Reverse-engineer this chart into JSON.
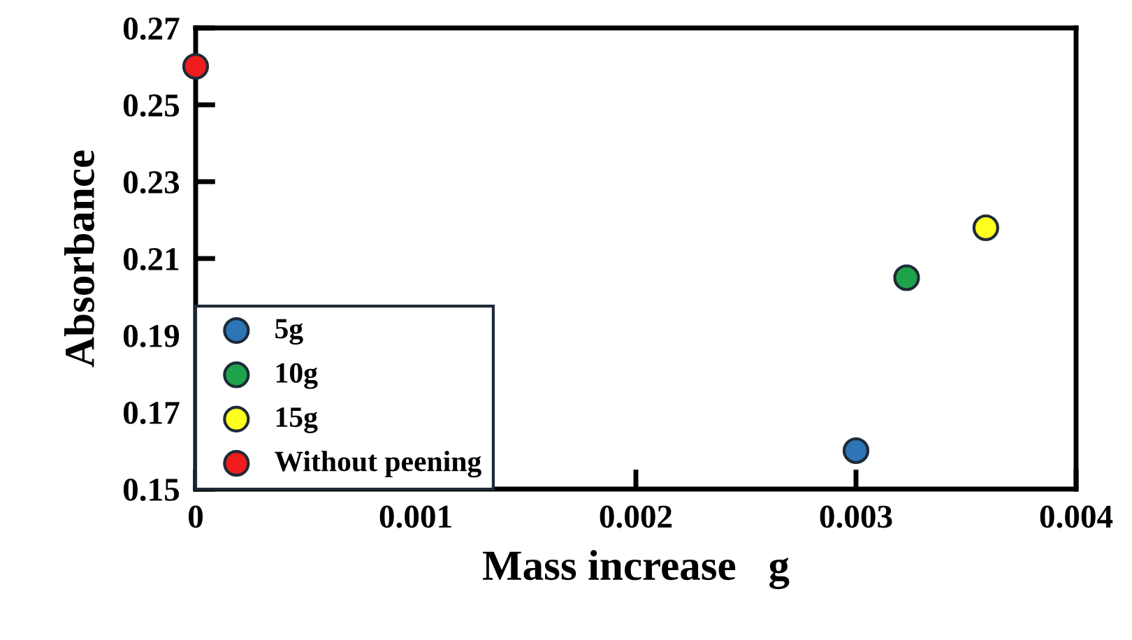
{
  "chart_data": {
    "type": "scatter",
    "xlabel": "Mass increase   g",
    "ylabel": "Absorbance",
    "series": [
      {
        "name": "5g",
        "color": "#2e75b6",
        "x": [
          0.003
        ],
        "values": [
          0.16
        ]
      },
      {
        "name": "10g",
        "color": "#1fa34a",
        "x": [
          0.00323
        ],
        "values": [
          0.205
        ]
      },
      {
        "name": "15g",
        "color": "#ffff1f",
        "x": [
          0.00359
        ],
        "values": [
          0.218
        ]
      },
      {
        "name": "Without peening",
        "color": "#ee1c1c",
        "x": [
          0
        ],
        "values": [
          0.26
        ]
      }
    ],
    "xlim": [
      0,
      0.004
    ],
    "xticks": [
      0,
      0.001,
      0.002,
      0.003,
      0.004
    ],
    "ylim": [
      0.15,
      0.27
    ],
    "yticks": [
      0.15,
      0.17,
      0.19,
      0.21,
      0.23,
      0.25,
      0.27
    ],
    "marker": "circle",
    "grid": false,
    "legend": "bottom left"
  }
}
